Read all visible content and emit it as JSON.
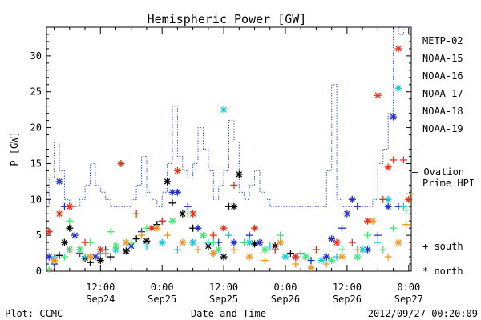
{
  "chart_data": {
    "type": "scatter",
    "title": "Hemispheric Power [GW]",
    "ylabel": "P [GW]",
    "xlabel": "Date and Time",
    "ylim": [
      0,
      34
    ],
    "y_ticks": [
      0,
      5,
      10,
      15,
      20,
      25,
      30
    ],
    "x_unit": "hours since 2012-09-23 00:00",
    "x_range": [
      1.5,
      72.5
    ],
    "x_ticks": [
      {
        "x": 12,
        "time": "12:00",
        "date": "Sep24"
      },
      {
        "x": 24,
        "time": "0:00",
        "date": "Sep25"
      },
      {
        "x": 36,
        "time": "12:00",
        "date": "Sep25"
      },
      {
        "x": 48,
        "time": "0:00",
        "date": "Sep26"
      },
      {
        "x": 60,
        "time": "12:00",
        "date": "Sep26"
      },
      {
        "x": 72,
        "time": "0:00",
        "date": "Sep27"
      }
    ],
    "legend": {
      "placement": "right",
      "entries": [
        {
          "label": "METP-02",
          "color": "#000000"
        },
        {
          "label": "NOAA-15",
          "color": "#1f2fd0"
        },
        {
          "label": "NOAA-16",
          "color": "#18c8d8"
        },
        {
          "label": "NOAA-17",
          "color": "#3ce870"
        },
        {
          "label": "NOAA-18",
          "color": "#f09820"
        },
        {
          "label": "NOAA-19",
          "color": "#e83018"
        }
      ],
      "ovation_label_1": "— Ovation",
      "ovation_label_2": "Prime HPI",
      "south_label": "+ south",
      "north_label": "* north"
    },
    "ovation": {
      "color": "#3050d8",
      "segments": [
        [
          1.5,
          9
        ],
        [
          2,
          13
        ],
        [
          3,
          18
        ],
        [
          4,
          14
        ],
        [
          5,
          10
        ],
        [
          6,
          9
        ],
        [
          7,
          9
        ],
        [
          8,
          10
        ],
        [
          9,
          12
        ],
        [
          10,
          15
        ],
        [
          11,
          12
        ],
        [
          12,
          11
        ],
        [
          13,
          10
        ],
        [
          14,
          9
        ],
        [
          17,
          9
        ],
        [
          18,
          10
        ],
        [
          19,
          12
        ],
        [
          20,
          16
        ],
        [
          21,
          11
        ],
        [
          22,
          10
        ],
        [
          23,
          9
        ],
        [
          24,
          11
        ],
        [
          25,
          15
        ],
        [
          26,
          23
        ],
        [
          27,
          16
        ],
        [
          28,
          14
        ],
        [
          29,
          13
        ],
        [
          30,
          15
        ],
        [
          31,
          20
        ],
        [
          32,
          17
        ],
        [
          33,
          14
        ],
        [
          34,
          10
        ],
        [
          35,
          12
        ],
        [
          36,
          14
        ],
        [
          37,
          21
        ],
        [
          38,
          18
        ],
        [
          39,
          11
        ],
        [
          40,
          10
        ],
        [
          41,
          12
        ],
        [
          42,
          14
        ],
        [
          43,
          11
        ],
        [
          44,
          10
        ],
        [
          45,
          9
        ],
        [
          50,
          9
        ],
        [
          55,
          9
        ],
        [
          56,
          14
        ],
        [
          57,
          26
        ],
        [
          58,
          10
        ],
        [
          59,
          9
        ],
        [
          64,
          9
        ],
        [
          65,
          10
        ],
        [
          66,
          15
        ],
        [
          67,
          17
        ],
        [
          68,
          22
        ],
        [
          69,
          34
        ],
        [
          70,
          33
        ],
        [
          71,
          34
        ],
        [
          72,
          34
        ],
        [
          72.5,
          34
        ]
      ],
      "end_x": 72.8
    },
    "series": [
      {
        "name": "METP-02",
        "color": "#000000",
        "points": [
          {
            "x": 3,
            "y": 1.5,
            "m": "*"
          },
          {
            "x": 4,
            "y": 2.2,
            "m": "+"
          },
          {
            "x": 5,
            "y": 4,
            "m": "*"
          },
          {
            "x": 6,
            "y": 6,
            "m": "*"
          },
          {
            "x": 8,
            "y": 3,
            "m": "+"
          },
          {
            "x": 9,
            "y": 1.8,
            "m": "*"
          },
          {
            "x": 10,
            "y": 1.2,
            "m": "+"
          },
          {
            "x": 12,
            "y": 1.5,
            "m": "*"
          },
          {
            "x": 14,
            "y": 2,
            "m": "+"
          },
          {
            "x": 17,
            "y": 2.8,
            "m": "*"
          },
          {
            "x": 19,
            "y": 4.5,
            "m": "+"
          },
          {
            "x": 21,
            "y": 4.2,
            "m": "*"
          },
          {
            "x": 23,
            "y": 6.5,
            "m": "+"
          },
          {
            "x": 25,
            "y": 12.5,
            "m": "*"
          },
          {
            "x": 26,
            "y": 9.5,
            "m": "+"
          },
          {
            "x": 28,
            "y": 8,
            "m": "*"
          },
          {
            "x": 30,
            "y": 6,
            "m": "+"
          },
          {
            "x": 33,
            "y": 3.5,
            "m": "*"
          },
          {
            "x": 34,
            "y": 2.5,
            "m": "+"
          },
          {
            "x": 36,
            "y": 2,
            "m": "*"
          },
          {
            "x": 37,
            "y": 9,
            "m": "+"
          },
          {
            "x": 38,
            "y": 9,
            "m": "*"
          },
          {
            "x": 39,
            "y": 13.5,
            "m": "*"
          },
          {
            "x": 40,
            "y": 4,
            "m": "+"
          },
          {
            "x": 42,
            "y": 3.8,
            "m": "*"
          },
          {
            "x": 44,
            "y": 3,
            "m": "+"
          },
          {
            "x": 46,
            "y": 3.5,
            "m": "*"
          },
          {
            "x": 49,
            "y": 2.5,
            "m": "+"
          }
        ]
      },
      {
        "name": "NOAA-15",
        "color": "#1f2fd0",
        "points": [
          {
            "x": 2,
            "y": 2,
            "m": "*"
          },
          {
            "x": 3,
            "y": 1,
            "m": "+"
          },
          {
            "x": 4,
            "y": 12.5,
            "m": "*"
          },
          {
            "x": 5,
            "y": 9,
            "m": "+"
          },
          {
            "x": 7,
            "y": 5,
            "m": "*"
          },
          {
            "x": 8,
            "y": 2.5,
            "m": "+"
          },
          {
            "x": 11,
            "y": 2,
            "m": "*"
          },
          {
            "x": 13,
            "y": 3,
            "m": "+"
          },
          {
            "x": 18,
            "y": 3.5,
            "m": "*"
          },
          {
            "x": 20,
            "y": 5.5,
            "m": "+"
          },
          {
            "x": 22,
            "y": 6,
            "m": "*"
          },
          {
            "x": 24,
            "y": 7,
            "m": "+"
          },
          {
            "x": 26,
            "y": 11,
            "m": "*"
          },
          {
            "x": 27,
            "y": 11,
            "m": "*"
          },
          {
            "x": 29,
            "y": 9,
            "m": "+"
          },
          {
            "x": 31,
            "y": 6,
            "m": "*"
          },
          {
            "x": 35,
            "y": 4,
            "m": "+"
          },
          {
            "x": 38,
            "y": 4,
            "m": "*"
          },
          {
            "x": 41,
            "y": 5,
            "m": "+"
          },
          {
            "x": 43,
            "y": 4,
            "m": "*"
          },
          {
            "x": 46,
            "y": 3,
            "m": "+"
          },
          {
            "x": 50,
            "y": 2,
            "m": "*"
          },
          {
            "x": 53,
            "y": 1.5,
            "m": "+"
          },
          {
            "x": 56,
            "y": 2,
            "m": "*"
          },
          {
            "x": 57,
            "y": 4.5,
            "m": "*"
          },
          {
            "x": 59,
            "y": 6,
            "m": "+"
          },
          {
            "x": 60,
            "y": 8,
            "m": "*"
          },
          {
            "x": 61,
            "y": 10,
            "m": "*"
          },
          {
            "x": 62,
            "y": 9,
            "m": "+"
          },
          {
            "x": 64,
            "y": 3,
            "m": "*"
          },
          {
            "x": 66,
            "y": 5,
            "m": "+"
          },
          {
            "x": 68,
            "y": 9,
            "m": "*"
          },
          {
            "x": 69,
            "y": 21.5,
            "m": "*"
          },
          {
            "x": 70,
            "y": 9,
            "m": "+"
          }
        ]
      },
      {
        "name": "NOAA-16",
        "color": "#18c8d8",
        "points": [
          {
            "x": 3,
            "y": 2,
            "m": "+"
          },
          {
            "x": 6,
            "y": 3,
            "m": "*"
          },
          {
            "x": 9,
            "y": 2,
            "m": "+"
          },
          {
            "x": 12,
            "y": 2.5,
            "m": "+"
          },
          {
            "x": 15,
            "y": 3,
            "m": "*"
          },
          {
            "x": 21,
            "y": 3.5,
            "m": "+"
          },
          {
            "x": 24,
            "y": 4,
            "m": "*"
          },
          {
            "x": 27,
            "y": 3,
            "m": "+"
          },
          {
            "x": 30,
            "y": 4,
            "m": "*"
          },
          {
            "x": 33,
            "y": 4,
            "m": "+"
          },
          {
            "x": 36,
            "y": 22.5,
            "m": "*"
          },
          {
            "x": 37,
            "y": 5,
            "m": "+"
          },
          {
            "x": 41,
            "y": 4,
            "m": "*"
          },
          {
            "x": 45,
            "y": 3.5,
            "m": "+"
          },
          {
            "x": 48,
            "y": 2,
            "m": "*"
          },
          {
            "x": 51,
            "y": 2.5,
            "m": "+"
          },
          {
            "x": 55,
            "y": 1.5,
            "m": "*"
          },
          {
            "x": 58,
            "y": 2,
            "m": "+"
          },
          {
            "x": 63,
            "y": 3,
            "m": "*"
          },
          {
            "x": 66,
            "y": 4,
            "m": "+"
          },
          {
            "x": 68,
            "y": 10,
            "m": "*"
          },
          {
            "x": 70,
            "y": 25.5,
            "m": "*"
          },
          {
            "x": 71,
            "y": 9,
            "m": "+"
          }
        ]
      },
      {
        "name": "NOAA-17",
        "color": "#3ce870",
        "points": [
          {
            "x": 2,
            "y": 0.3,
            "m": "+"
          },
          {
            "x": 5,
            "y": 2,
            "m": "+"
          },
          {
            "x": 6,
            "y": 7,
            "m": "+"
          },
          {
            "x": 8,
            "y": 3,
            "m": "*"
          },
          {
            "x": 10,
            "y": 4,
            "m": "+"
          },
          {
            "x": 14,
            "y": 5.5,
            "m": "+"
          },
          {
            "x": 15,
            "y": 3.5,
            "m": "*"
          },
          {
            "x": 18,
            "y": 4,
            "m": "+"
          },
          {
            "x": 21,
            "y": 6,
            "m": "+"
          },
          {
            "x": 26,
            "y": 7,
            "m": "*"
          },
          {
            "x": 29,
            "y": 8,
            "m": "+"
          },
          {
            "x": 32,
            "y": 5,
            "m": "*"
          },
          {
            "x": 34,
            "y": 4,
            "m": "+"
          },
          {
            "x": 35,
            "y": 3,
            "m": "*"
          },
          {
            "x": 40,
            "y": 4,
            "m": "+"
          },
          {
            "x": 44,
            "y": 3,
            "m": "*"
          },
          {
            "x": 47,
            "y": 5,
            "m": "+"
          },
          {
            "x": 52,
            "y": 2,
            "m": "*"
          },
          {
            "x": 54,
            "y": 3,
            "m": "+"
          },
          {
            "x": 57,
            "y": 1.5,
            "m": "*"
          },
          {
            "x": 59,
            "y": 3,
            "m": "+"
          },
          {
            "x": 62,
            "y": 2,
            "m": "*"
          },
          {
            "x": 64,
            "y": 5,
            "m": "+"
          },
          {
            "x": 67,
            "y": 3,
            "m": "+"
          },
          {
            "x": 69,
            "y": 6,
            "m": "+"
          },
          {
            "x": 71.5,
            "y": 8.5,
            "m": "+"
          }
        ]
      },
      {
        "name": "NOAA-18",
        "color": "#f09820",
        "points": [
          {
            "x": 3,
            "y": 1.5,
            "m": "*"
          },
          {
            "x": 6,
            "y": 3,
            "m": "+"
          },
          {
            "x": 10,
            "y": 2,
            "m": "*"
          },
          {
            "x": 13,
            "y": 2.5,
            "m": "+"
          },
          {
            "x": 17,
            "y": 4,
            "m": "*"
          },
          {
            "x": 20,
            "y": 5,
            "m": "+"
          },
          {
            "x": 23,
            "y": 6,
            "m": "*"
          },
          {
            "x": 25,
            "y": 5,
            "m": "+"
          },
          {
            "x": 28,
            "y": 4,
            "m": "*"
          },
          {
            "x": 31,
            "y": 3,
            "m": "+"
          },
          {
            "x": 34,
            "y": 2.5,
            "m": "*"
          },
          {
            "x": 38,
            "y": 3,
            "m": "+"
          },
          {
            "x": 41,
            "y": 2,
            "m": "*"
          },
          {
            "x": 44,
            "y": 1.5,
            "m": "+"
          },
          {
            "x": 47,
            "y": 4,
            "m": "*"
          },
          {
            "x": 50,
            "y": 1,
            "m": "+"
          },
          {
            "x": 53,
            "y": 0.5,
            "m": "*"
          },
          {
            "x": 56,
            "y": 1,
            "m": "+"
          },
          {
            "x": 59,
            "y": 2,
            "m": "*"
          },
          {
            "x": 62,
            "y": 3,
            "m": "+"
          },
          {
            "x": 65,
            "y": 7,
            "m": "*"
          },
          {
            "x": 68,
            "y": 2,
            "m": "+"
          },
          {
            "x": 70,
            "y": 4,
            "m": "*"
          },
          {
            "x": 71.5,
            "y": 6.5,
            "m": "+"
          },
          {
            "x": 72.3,
            "y": 10.8,
            "m": "+"
          }
        ]
      },
      {
        "name": "NOAA-19",
        "color": "#e83018",
        "points": [
          {
            "x": 2,
            "y": 5.5,
            "m": "*"
          },
          {
            "x": 4,
            "y": 8,
            "m": "*"
          },
          {
            "x": 6,
            "y": 9,
            "m": "*"
          },
          {
            "x": 9,
            "y": 4,
            "m": "+"
          },
          {
            "x": 12,
            "y": 3,
            "m": "*"
          },
          {
            "x": 16,
            "y": 15,
            "m": "*"
          },
          {
            "x": 19,
            "y": 8,
            "m": "+"
          },
          {
            "x": 22,
            "y": 6,
            "m": "*"
          },
          {
            "x": 24,
            "y": 7,
            "m": "+"
          },
          {
            "x": 27,
            "y": 14,
            "m": "*"
          },
          {
            "x": 30,
            "y": 8,
            "m": "*"
          },
          {
            "x": 34,
            "y": 5,
            "m": "+"
          },
          {
            "x": 36,
            "y": 6,
            "m": "*"
          },
          {
            "x": 38,
            "y": 12,
            "m": "+"
          },
          {
            "x": 42,
            "y": 6,
            "m": "*"
          },
          {
            "x": 46,
            "y": 3,
            "m": "+"
          },
          {
            "x": 50,
            "y": 2,
            "m": "*"
          },
          {
            "x": 54,
            "y": 3,
            "m": "+"
          },
          {
            "x": 58,
            "y": 4,
            "m": "*"
          },
          {
            "x": 61,
            "y": 4,
            "m": "+"
          },
          {
            "x": 64,
            "y": 7,
            "m": "*"
          },
          {
            "x": 66,
            "y": 24.5,
            "m": "*"
          },
          {
            "x": 67,
            "y": 10,
            "m": "+"
          },
          {
            "x": 68,
            "y": 14.5,
            "m": "*"
          },
          {
            "x": 69,
            "y": 15.5,
            "m": "+"
          },
          {
            "x": 70,
            "y": 31,
            "m": "*"
          },
          {
            "x": 71,
            "y": 15.5,
            "m": "+"
          },
          {
            "x": 72,
            "y": 10,
            "m": "*"
          }
        ]
      }
    ]
  },
  "footer": {
    "plot_label": "Plot: CCMC",
    "timestamp": "2012/09/27 00:20:09"
  }
}
